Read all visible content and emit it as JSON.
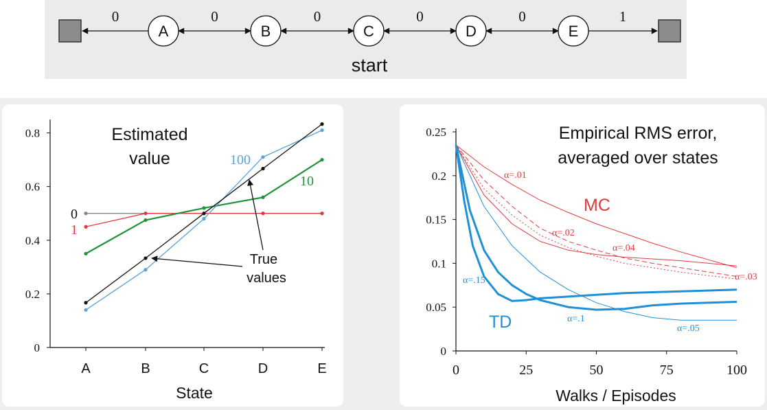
{
  "random_walk": {
    "states": [
      "A",
      "B",
      "C",
      "D",
      "E"
    ],
    "rewards": [
      "0",
      "0",
      "0",
      "0",
      "0",
      "1"
    ],
    "start_label": "start"
  },
  "chart_data": [
    {
      "type": "line",
      "title": "Estimated value",
      "xlabel": "State",
      "ylabel": "",
      "categories": [
        "A",
        "B",
        "C",
        "D",
        "E"
      ],
      "ylim": [
        0,
        0.85
      ],
      "yticks": [
        "0",
        "0.2",
        "0.4",
        "0.6",
        "0.8"
      ],
      "grid": false,
      "series": [
        {
          "name": "0",
          "values": [
            0.5,
            0.5,
            0.5,
            0.5,
            0.5
          ],
          "color": "#888888"
        },
        {
          "name": "1",
          "values": [
            0.45,
            0.5,
            0.5,
            0.5,
            0.5
          ],
          "color": "#e0393e"
        },
        {
          "name": "10",
          "values": [
            0.35,
            0.475,
            0.52,
            0.56,
            0.7
          ],
          "color": "#22923a"
        },
        {
          "name": "100",
          "values": [
            0.14,
            0.29,
            0.48,
            0.71,
            0.81
          ],
          "color": "#5aa2d8"
        },
        {
          "name": "True values",
          "values": [
            0.167,
            0.333,
            0.5,
            0.667,
            0.833
          ],
          "color": "#111111"
        }
      ],
      "annotation": "True values"
    },
    {
      "type": "line",
      "title": "Empirical RMS error, averaged over states",
      "xlabel": "Walks / Episodes",
      "ylabel": "",
      "xlim": [
        0,
        100
      ],
      "ylim": [
        0,
        0.25
      ],
      "xticks": [
        "0",
        "25",
        "50",
        "75",
        "100"
      ],
      "yticks": [
        "0",
        "0.05",
        "0.1",
        "0.15",
        "0.2",
        "0.25"
      ],
      "grid": false,
      "groups": [
        {
          "name": "MC",
          "color": "#e0393e"
        },
        {
          "name": "TD",
          "color": "#1f8fd6"
        }
      ],
      "series": [
        {
          "name": "α=.01",
          "method": "MC",
          "style": "solid",
          "x": [
            0,
            10,
            20,
            30,
            40,
            50,
            60,
            70,
            80,
            90,
            100
          ],
          "y": [
            0.235,
            0.21,
            0.19,
            0.172,
            0.158,
            0.145,
            0.134,
            0.123,
            0.113,
            0.104,
            0.095
          ]
        },
        {
          "name": "α=.02",
          "method": "MC",
          "style": "dashed",
          "x": [
            0,
            10,
            20,
            30,
            40,
            50,
            60,
            70,
            80,
            90,
            100
          ],
          "y": [
            0.235,
            0.195,
            0.165,
            0.14,
            0.125,
            0.115,
            0.106,
            0.1,
            0.095,
            0.09,
            0.085
          ]
        },
        {
          "name": "α=.03",
          "method": "MC",
          "style": "dotted",
          "x": [
            0,
            10,
            20,
            30,
            40,
            50,
            60,
            70,
            80,
            90,
            100
          ],
          "y": [
            0.235,
            0.185,
            0.155,
            0.132,
            0.118,
            0.108,
            0.1,
            0.095,
            0.09,
            0.086,
            0.082
          ]
        },
        {
          "name": "α=.04",
          "method": "MC",
          "style": "solid",
          "x": [
            0,
            10,
            20,
            30,
            40,
            50,
            60,
            70,
            80,
            90,
            100
          ],
          "y": [
            0.235,
            0.178,
            0.145,
            0.125,
            0.115,
            0.11,
            0.107,
            0.105,
            0.103,
            0.1,
            0.097
          ]
        },
        {
          "name": "α=.05",
          "method": "TD",
          "style": "thin",
          "x": [
            0,
            10,
            20,
            30,
            40,
            50,
            60,
            70,
            80,
            90,
            100
          ],
          "y": [
            0.235,
            0.165,
            0.12,
            0.09,
            0.07,
            0.055,
            0.045,
            0.038,
            0.035,
            0.035,
            0.035
          ]
        },
        {
          "name": "α=.1",
          "method": "TD",
          "style": "thick",
          "x": [
            0,
            5,
            10,
            15,
            20,
            25,
            30,
            40,
            50,
            60,
            70,
            80,
            90,
            100
          ],
          "y": [
            0.235,
            0.16,
            0.115,
            0.09,
            0.075,
            0.065,
            0.058,
            0.05,
            0.047,
            0.048,
            0.052,
            0.054,
            0.055,
            0.056
          ]
        },
        {
          "name": "α=.15",
          "method": "TD",
          "style": "thick",
          "x": [
            0,
            3,
            6,
            10,
            15,
            20,
            25,
            30,
            40,
            50,
            60,
            70,
            80,
            90,
            100
          ],
          "y": [
            0.235,
            0.17,
            0.12,
            0.085,
            0.065,
            0.057,
            0.058,
            0.06,
            0.062,
            0.064,
            0.066,
            0.067,
            0.068,
            0.069,
            0.07
          ]
        }
      ]
    }
  ]
}
